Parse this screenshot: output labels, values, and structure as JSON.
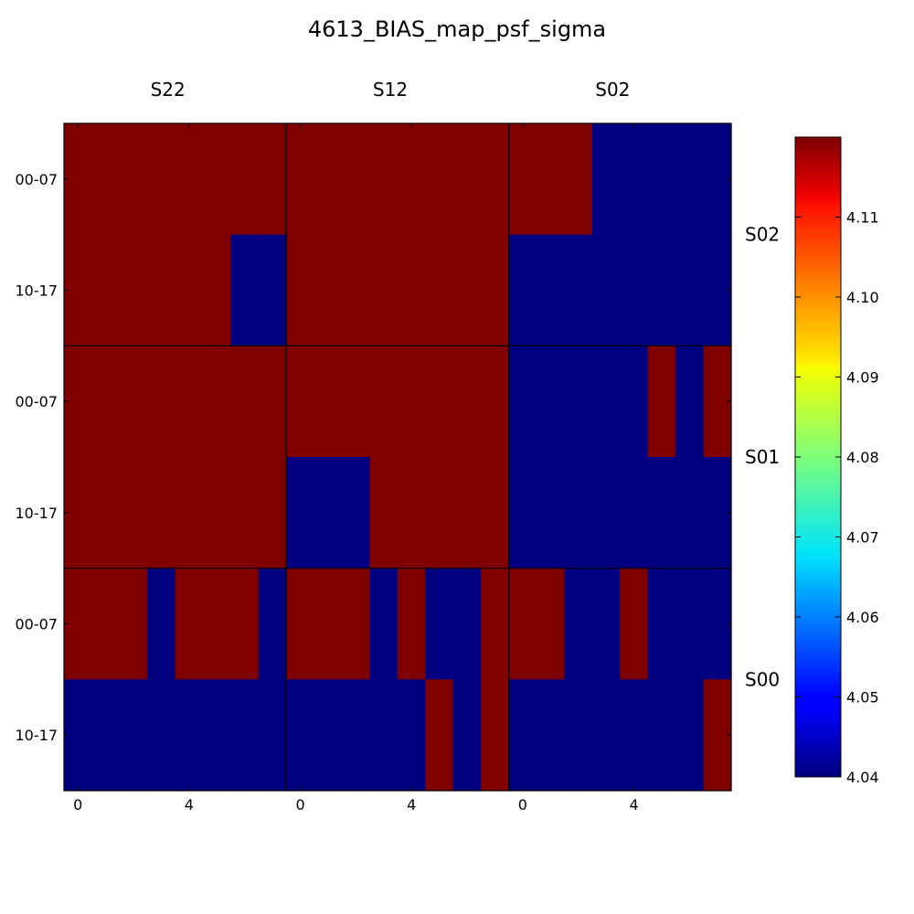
{
  "chart_data": {
    "type": "heatmap",
    "title": "4613_BIAS_map_psf_sigma",
    "colormap": "jet",
    "value_range": [
      4.04,
      4.12
    ],
    "low_value": 4.04,
    "high_value": 4.12,
    "columns": [
      "S22",
      "S12",
      "S02"
    ],
    "rows": [
      "S02",
      "S01",
      "S00"
    ],
    "x_tick_labels": [
      "0",
      "4"
    ],
    "y_tick_labels": [
      "00-07",
      "10-17"
    ],
    "colorbar": {
      "ticks": [
        "4.04",
        "4.05",
        "4.06",
        "4.07",
        "4.08",
        "4.09",
        "4.10",
        "4.11"
      ],
      "tick_values": [
        4.04,
        4.05,
        4.06,
        4.07,
        4.08,
        4.09,
        4.1,
        4.11
      ]
    },
    "panels": [
      {
        "row": "S02",
        "col": "S22",
        "grid": [
          [
            1,
            1,
            1,
            1,
            1,
            1,
            1,
            1
          ],
          [
            1,
            1,
            1,
            1,
            1,
            1,
            0,
            0
          ]
        ]
      },
      {
        "row": "S02",
        "col": "S12",
        "grid": [
          [
            1,
            1,
            1,
            1,
            1,
            1,
            1,
            1
          ],
          [
            1,
            1,
            1,
            1,
            1,
            1,
            1,
            1
          ]
        ]
      },
      {
        "row": "S02",
        "col": "S02",
        "grid": [
          [
            1,
            1,
            1,
            0,
            0,
            0,
            0,
            0
          ],
          [
            0,
            0,
            0,
            0,
            0,
            0,
            0,
            0
          ]
        ]
      },
      {
        "row": "S01",
        "col": "S22",
        "grid": [
          [
            1,
            1,
            1,
            1,
            1,
            1,
            1,
            1
          ],
          [
            1,
            1,
            1,
            1,
            1,
            1,
            1,
            1
          ]
        ]
      },
      {
        "row": "S01",
        "col": "S12",
        "grid": [
          [
            1,
            1,
            1,
            1,
            1,
            1,
            1,
            1
          ],
          [
            0,
            0,
            0,
            1,
            1,
            1,
            1,
            1
          ]
        ]
      },
      {
        "row": "S01",
        "col": "S02",
        "grid": [
          [
            0,
            0,
            0,
            0,
            0,
            1,
            0,
            1
          ],
          [
            0,
            0,
            0,
            0,
            0,
            0,
            0,
            0
          ]
        ]
      },
      {
        "row": "S00",
        "col": "S22",
        "grid": [
          [
            1,
            1,
            1,
            0,
            1,
            1,
            1,
            0
          ],
          [
            0,
            0,
            0,
            0,
            0,
            0,
            0,
            0
          ]
        ]
      },
      {
        "row": "S00",
        "col": "S12",
        "grid": [
          [
            1,
            1,
            1,
            0,
            1,
            0,
            0,
            1
          ],
          [
            0,
            0,
            0,
            0,
            0,
            1,
            0,
            1
          ]
        ]
      },
      {
        "row": "S00",
        "col": "S02",
        "grid": [
          [
            1,
            1,
            0,
            0,
            1,
            0,
            0,
            0
          ],
          [
            0,
            0,
            0,
            0,
            0,
            0,
            0,
            1
          ]
        ]
      }
    ]
  }
}
